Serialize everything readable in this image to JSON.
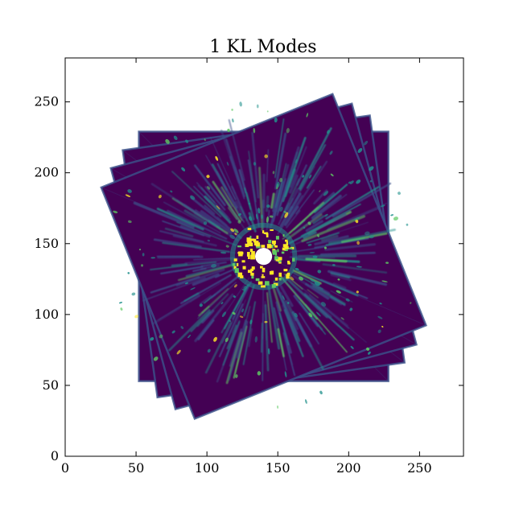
{
  "chart_data": {
    "type": "heatmap",
    "title": "1 KL Modes",
    "xlabel": "",
    "ylabel": "",
    "xlim": [
      0,
      281
    ],
    "ylim": [
      0,
      281
    ],
    "x_ticks": [
      0,
      50,
      100,
      150,
      200,
      250
    ],
    "y_ticks": [
      0,
      50,
      100,
      150,
      200,
      250
    ],
    "x_tick_labels": [
      "0",
      "50",
      "100",
      "150",
      "200",
      "250"
    ],
    "y_tick_labels": [
      "0",
      "50",
      "100",
      "150",
      "200",
      "250"
    ],
    "grid": false,
    "colormap": "viridis",
    "colormap_stops": [
      "#440154",
      "#3b528b",
      "#21918c",
      "#5ec962",
      "#fde725"
    ],
    "background_color": "#ffffff",
    "image_center": [
      140,
      141
    ],
    "central_mask_radius": 6,
    "rotated_frames": [
      {
        "center": [
          140,
          141
        ],
        "half_size": 88,
        "angle_deg": 0
      },
      {
        "center": [
          140,
          141
        ],
        "half_size": 88,
        "angle_deg": 8
      },
      {
        "center": [
          140,
          141
        ],
        "half_size": 88,
        "angle_deg": 15
      },
      {
        "center": [
          140,
          141
        ],
        "half_size": 88,
        "angle_deg": 22
      }
    ],
    "bright_speckle_ring": {
      "center": [
        140,
        141
      ],
      "inner_radius": 7,
      "outer_radius": 22
    }
  }
}
